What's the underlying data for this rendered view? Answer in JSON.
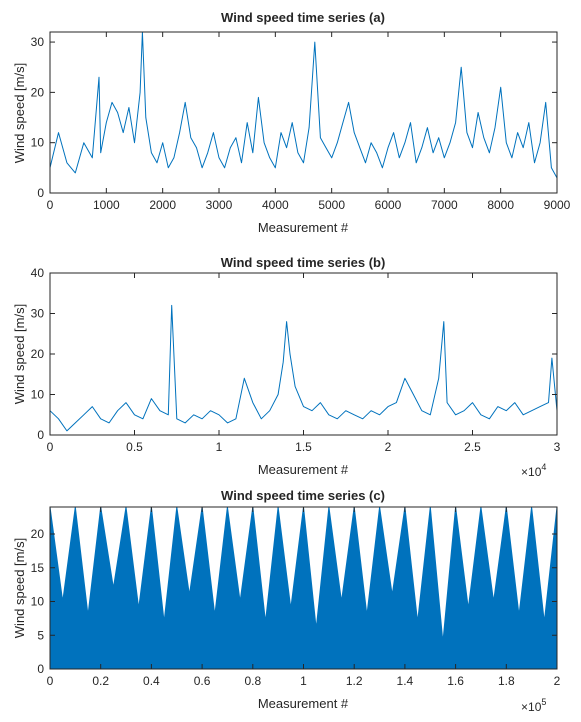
{
  "chart_data": [
    {
      "type": "line",
      "title": "Wind speed time series (a)",
      "xlabel": "Measurement #",
      "ylabel": "Wind speed [m/s]",
      "xlim": [
        0,
        9000
      ],
      "ylim": [
        0,
        32
      ],
      "xticks": [
        0,
        1000,
        2000,
        3000,
        4000,
        5000,
        6000,
        7000,
        8000,
        9000
      ],
      "xtick_labels": [
        "0",
        "1000",
        "2000",
        "3000",
        "4000",
        "5000",
        "6000",
        "7000",
        "8000",
        "9000"
      ],
      "yticks": [
        0,
        10,
        20,
        30
      ],
      "ytick_labels": [
        "0",
        "10",
        "20",
        "30"
      ],
      "x_exponent": "",
      "color": "#0072bd",
      "series": [
        {
          "x": [
            0,
            150,
            300,
            450,
            600,
            750,
            870,
            900,
            1000,
            1100,
            1200,
            1300,
            1400,
            1500,
            1600,
            1640,
            1700,
            1800,
            1900,
            2000,
            2100,
            2200,
            2300,
            2400,
            2500,
            2600,
            2700,
            2800,
            2900,
            3000,
            3100,
            3200,
            3300,
            3400,
            3500,
            3600,
            3700,
            3800,
            3900,
            4000,
            4100,
            4200,
            4300,
            4400,
            4500,
            4600,
            4700,
            4800,
            4900,
            5000,
            5100,
            5200,
            5300,
            5400,
            5500,
            5600,
            5700,
            5800,
            5900,
            6000,
            6100,
            6200,
            6300,
            6400,
            6500,
            6600,
            6700,
            6800,
            6900,
            7000,
            7100,
            7200,
            7300,
            7400,
            7500,
            7600,
            7700,
            7800,
            7900,
            8000,
            8100,
            8200,
            8300,
            8400,
            8500,
            8600,
            8700,
            8800,
            8900,
            9000
          ],
          "y": [
            5,
            12,
            6,
            4,
            10,
            7,
            23,
            8,
            14,
            18,
            16,
            12,
            17,
            10,
            20,
            32,
            15,
            8,
            6,
            10,
            5,
            7,
            12,
            18,
            11,
            9,
            5,
            8,
            12,
            7,
            5,
            9,
            11,
            6,
            14,
            8,
            19,
            10,
            7,
            5,
            12,
            9,
            14,
            8,
            6,
            13,
            30,
            11,
            9,
            7,
            10,
            14,
            18,
            12,
            9,
            6,
            10,
            8,
            5,
            9,
            12,
            7,
            10,
            14,
            6,
            9,
            13,
            8,
            11,
            7,
            10,
            14,
            25,
            12,
            9,
            16,
            11,
            8,
            13,
            21,
            10,
            7,
            12,
            9,
            14,
            6,
            10,
            18,
            5,
            3
          ]
        }
      ]
    },
    {
      "type": "line",
      "title": "Wind speed time series (b)",
      "xlabel": "Measurement #",
      "ylabel": "Wind speed [m/s]",
      "xlim": [
        0,
        3
      ],
      "ylim": [
        0,
        40
      ],
      "xticks": [
        0,
        0.5,
        1,
        1.5,
        2,
        2.5,
        3
      ],
      "xtick_labels": [
        "0",
        "0.5",
        "1",
        "1.5",
        "2",
        "2.5",
        "3"
      ],
      "yticks": [
        0,
        10,
        20,
        30,
        40
      ],
      "ytick_labels": [
        "0",
        "10",
        "20",
        "30",
        "40"
      ],
      "x_exponent": "10",
      "x_exponent_power": "4",
      "color": "#0072bd",
      "series": [
        {
          "x": [
            0,
            0.05,
            0.1,
            0.15,
            0.2,
            0.25,
            0.3,
            0.35,
            0.4,
            0.45,
            0.5,
            0.55,
            0.6,
            0.65,
            0.7,
            0.72,
            0.75,
            0.8,
            0.85,
            0.9,
            0.95,
            1.0,
            1.05,
            1.1,
            1.15,
            1.2,
            1.25,
            1.3,
            1.35,
            1.38,
            1.4,
            1.42,
            1.45,
            1.5,
            1.55,
            1.6,
            1.65,
            1.7,
            1.75,
            1.8,
            1.85,
            1.9,
            1.95,
            2.0,
            2.05,
            2.1,
            2.15,
            2.2,
            2.25,
            2.3,
            2.33,
            2.35,
            2.4,
            2.45,
            2.5,
            2.55,
            2.6,
            2.65,
            2.7,
            2.75,
            2.8,
            2.85,
            2.9,
            2.95,
            2.97,
            3.0
          ],
          "y": [
            6,
            4,
            1,
            3,
            5,
            7,
            4,
            3,
            6,
            8,
            5,
            4,
            9,
            6,
            5,
            32,
            4,
            3,
            5,
            4,
            6,
            5,
            3,
            4,
            14,
            8,
            4,
            6,
            10,
            18,
            28,
            20,
            12,
            7,
            6,
            8,
            5,
            4,
            6,
            5,
            4,
            6,
            5,
            7,
            8,
            14,
            10,
            6,
            5,
            14,
            28,
            8,
            5,
            6,
            8,
            5,
            4,
            7,
            6,
            8,
            5,
            6,
            7,
            8,
            19,
            6
          ]
        }
      ]
    },
    {
      "type": "line",
      "title": "Wind speed time series (c)",
      "xlabel": "Measurement #",
      "ylabel": "Wind speed [m/s]",
      "xlim": [
        0,
        2
      ],
      "ylim": [
        0,
        24
      ],
      "xticks": [
        0,
        0.2,
        0.4,
        0.6,
        0.8,
        1,
        1.2,
        1.4,
        1.6,
        1.8,
        2
      ],
      "xtick_labels": [
        "0",
        "0.2",
        "0.4",
        "0.6",
        "0.8",
        "1",
        "1.2",
        "1.4",
        "1.6",
        "1.8",
        "2"
      ],
      "yticks": [
        0,
        5,
        10,
        15,
        20
      ],
      "ytick_labels": [
        "0",
        "5",
        "10",
        "15",
        "20"
      ],
      "x_exponent": "10",
      "x_exponent_power": "5",
      "color": "#0072bd",
      "series": [
        {
          "x": [
            0,
            0.05,
            0.1,
            0.15,
            0.2,
            0.25,
            0.3,
            0.35,
            0.4,
            0.45,
            0.5,
            0.55,
            0.6,
            0.65,
            0.7,
            0.75,
            0.8,
            0.85,
            0.9,
            0.95,
            1.0,
            1.05,
            1.1,
            1.15,
            1.2,
            1.25,
            1.3,
            1.35,
            1.4,
            1.45,
            1.5,
            1.55,
            1.6,
            1.65,
            1.7,
            1.75,
            1.8,
            1.85,
            1.9,
            1.95,
            2.0
          ],
          "y": [
            24,
            10,
            24,
            8,
            24,
            12,
            24,
            9,
            24,
            7,
            24,
            11,
            24,
            8,
            24,
            10,
            24,
            7,
            24,
            9,
            24,
            6,
            24,
            10,
            24,
            8,
            24,
            11,
            24,
            7,
            24,
            4,
            24,
            9,
            24,
            10,
            24,
            8,
            24,
            7,
            24
          ],
          "y_min": [
            0,
            0,
            0,
            0,
            0,
            0,
            0,
            0,
            0,
            0,
            0,
            0,
            0,
            0,
            0,
            0,
            0,
            0,
            0,
            0,
            0,
            0,
            0,
            0,
            0,
            0,
            0,
            0,
            0,
            0,
            0,
            0,
            0,
            0,
            0,
            0,
            0,
            0,
            0,
            0,
            0
          ]
        }
      ]
    }
  ]
}
